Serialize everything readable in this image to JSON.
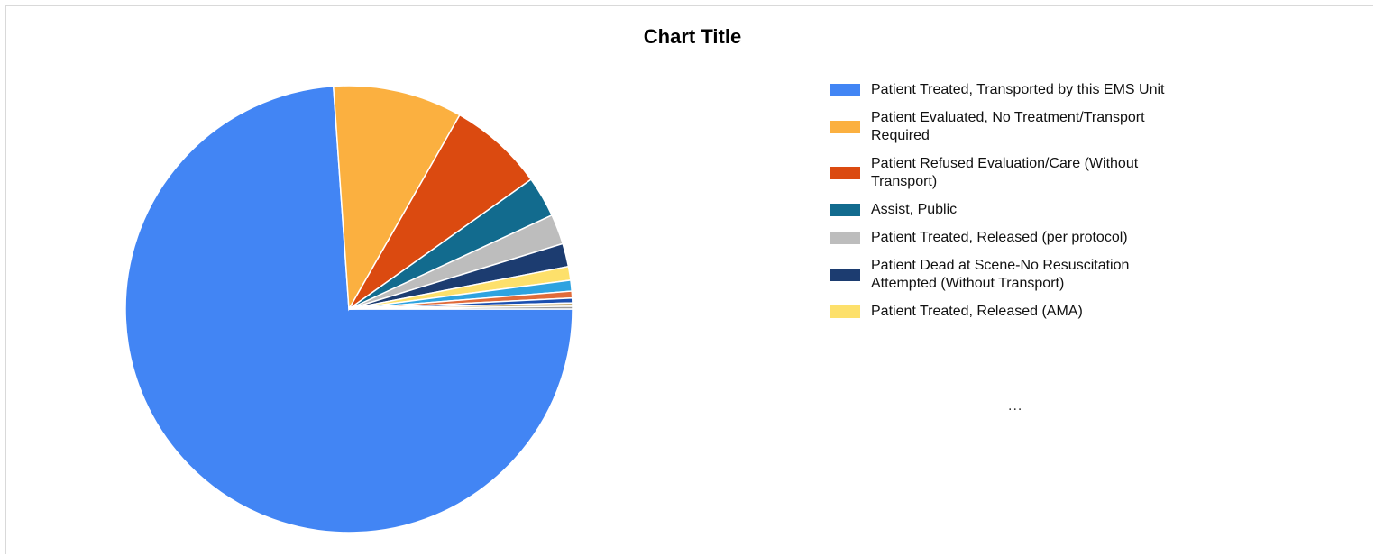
{
  "chart_data": {
    "type": "pie",
    "title": "Chart Title",
    "legend_position": "right",
    "legend_overflow": "...",
    "series": [
      {
        "name": "Patient Treated, Transported by this EMS Unit",
        "value": 75.0,
        "color": "#4285f4"
      },
      {
        "name": "Patient Evaluated, No Treatment/Transport Required",
        "value": 9.5,
        "color": "#fbb040"
      },
      {
        "name": "Patient Refused Evaluation/Care (Without Transport)",
        "value": 7.0,
        "color": "#db4a10"
      },
      {
        "name": "Assist, Public",
        "value": 3.0,
        "color": "#126b8e"
      },
      {
        "name": "Patient Treated, Released (per protocol)",
        "value": 2.2,
        "color": "#bdbdbd"
      },
      {
        "name": "Patient Dead at Scene-No Resuscitation Attempted (Without Transport)",
        "value": 1.7,
        "color": "#1c3c70"
      },
      {
        "name": "Patient Treated, Released (AMA)",
        "value": 1.0,
        "color": "#fde06b"
      },
      {
        "name": "",
        "value": 0.8,
        "color": "#2ea3e0"
      },
      {
        "name": "",
        "value": 0.5,
        "color": "#e06b3a"
      },
      {
        "name": "",
        "value": 0.35,
        "color": "#1b4fb0"
      },
      {
        "name": "",
        "value": 0.25,
        "color": "#c7b07a"
      },
      {
        "name": "",
        "value": 0.2,
        "color": "#9a9a9a"
      }
    ]
  }
}
